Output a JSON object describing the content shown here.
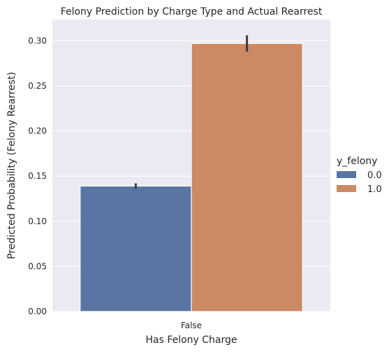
{
  "chart_data": {
    "type": "bar",
    "title": "Felony Prediction by Charge Type and Actual Rearrest",
    "xlabel": "Has Felony Charge",
    "ylabel": "Predicted Probability (Felony Rearrest)",
    "categories": [
      "False"
    ],
    "ylim": [
      0,
      0.3235
    ],
    "yticks": [
      "0.00",
      "0.05",
      "0.10",
      "0.15",
      "0.20",
      "0.25",
      "0.30"
    ],
    "grid": true,
    "legend": {
      "title": "y_felony",
      "placement": "right"
    },
    "series": [
      {
        "name": "0.0",
        "values": [
          0.139
        ],
        "ci_low": [
          0.136
        ],
        "ci_high": [
          0.142
        ],
        "color": "#5975a4"
      },
      {
        "name": "1.0",
        "values": [
          0.297
        ],
        "ci_low": [
          0.288
        ],
        "ci_high": [
          0.306
        ],
        "color": "#cc8963"
      }
    ]
  },
  "colors": {
    "plot_background": "#eaeaf2",
    "grid": "#ffffff",
    "error_bar": "#3c3c3c"
  }
}
